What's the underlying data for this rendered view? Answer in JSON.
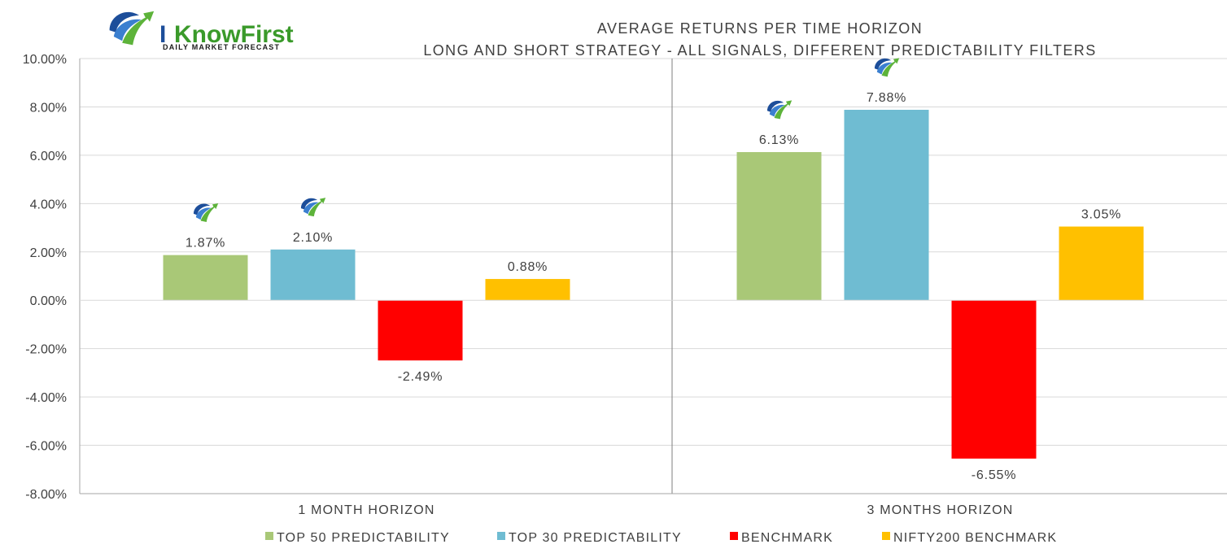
{
  "logo": {
    "brand_i": "I",
    "brand_rest": "KnowFirst",
    "tagline": "DAILY MARKET FORECAST"
  },
  "chart_data": {
    "type": "bar",
    "title": "AVERAGE RETURNS PER TIME HORIZON",
    "subtitle": "LONG AND SHORT STRATEGY - ALL SIGNALS, DIFFERENT PREDICTABILITY FILTERS",
    "categories": [
      "1 MONTH HORIZON",
      "3 MONTHS HORIZON"
    ],
    "series": [
      {
        "name": "TOP 50 PREDICTABILITY",
        "color": "#a9c877",
        "values": [
          1.87,
          6.13
        ],
        "labels": [
          "1.87%",
          "6.13%"
        ]
      },
      {
        "name": "TOP 30 PREDICTABILITY",
        "color": "#6fbcd2",
        "values": [
          2.1,
          7.88
        ],
        "labels": [
          "2.10%",
          "7.88%"
        ]
      },
      {
        "name": "BENCHMARK",
        "color": "#ff0000",
        "values": [
          -2.49,
          -6.55
        ],
        "labels": [
          "-2.49%",
          "-6.55%"
        ]
      },
      {
        "name": "NIFTY200 BENCHMARK",
        "color": "#ffc000",
        "values": [
          0.88,
          3.05
        ],
        "labels": [
          "0.88%",
          "3.05%"
        ]
      }
    ],
    "ylim": [
      -8,
      10
    ],
    "yticks": [
      "-8.00%",
      "-6.00%",
      "-4.00%",
      "-2.00%",
      "0.00%",
      "2.00%",
      "4.00%",
      "6.00%",
      "8.00%",
      "10.00%"
    ],
    "grid": true,
    "legend": "bottom",
    "icon_marks": {
      "series": [
        "TOP 50 PREDICTABILITY",
        "TOP 30 PREDICTABILITY"
      ],
      "icon": "iknowfirst-logo-icon"
    }
  }
}
